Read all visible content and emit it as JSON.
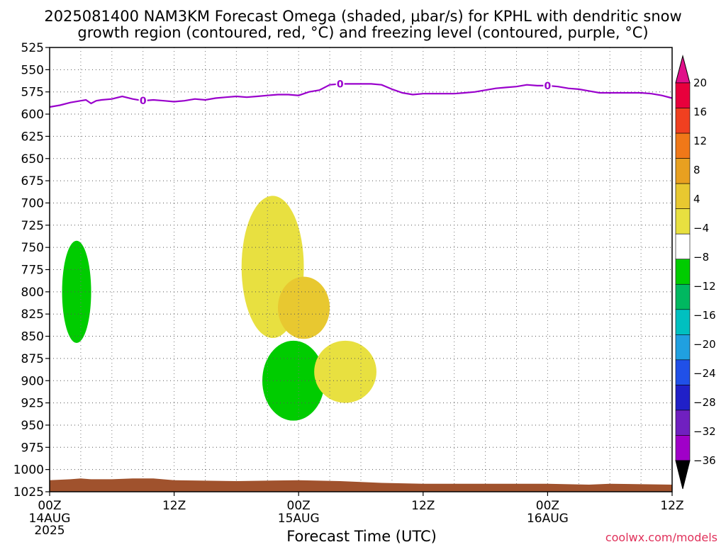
{
  "chart_data": {
    "type": "heatmap",
    "title_line1": "2025081400 NAM3KM Forecast Omega (shaded, μbar/s) for KPHL with dendritic snow",
    "title_line2": "growth region (contoured, red, °C) and freezing level (contoured, purple, °C)",
    "xlabel": "Forecast Time (UTC)",
    "credit": "coolwx.com/models",
    "x_range_hours": [
      0,
      60
    ],
    "y_range_hpa": [
      525,
      1025
    ],
    "y_scale": "pressure (inverted)",
    "grid": true,
    "x_ticks": [
      {
        "hour": 0,
        "label": "00Z",
        "date": "14AUG",
        "year": "2025"
      },
      {
        "hour": 12,
        "label": "12Z",
        "date": "",
        "year": ""
      },
      {
        "hour": 24,
        "label": "00Z",
        "date": "15AUG",
        "year": ""
      },
      {
        "hour": 36,
        "label": "12Z",
        "date": "",
        "year": ""
      },
      {
        "hour": 48,
        "label": "00Z",
        "date": "16AUG",
        "year": ""
      },
      {
        "hour": 60,
        "label": "12Z",
        "date": "",
        "year": ""
      }
    ],
    "y_ticks": [
      525,
      550,
      575,
      600,
      625,
      650,
      675,
      700,
      725,
      750,
      775,
      800,
      825,
      850,
      875,
      900,
      925,
      950,
      975,
      1000,
      1025
    ],
    "colorbar": {
      "labels": [
        "20",
        "16",
        "12",
        "8",
        "4",
        "−4",
        "−8",
        "−12",
        "−16",
        "−20",
        "−24",
        "−28",
        "−32",
        "−36"
      ],
      "colors": [
        "#e8003c",
        "#f04020",
        "#f07818",
        "#e8a020",
        "#e8c830",
        "#e8e040",
        "#ffffff",
        "#00cc00",
        "#00b860",
        "#00c0c0",
        "#20a0e0",
        "#2050e8",
        "#2020c8",
        "#7020c0",
        "#a000c8",
        "#a0a0a0"
      ]
    },
    "freezing_level": {
      "label": "0",
      "color": "#9900cc",
      "points": [
        [
          0,
          592
        ],
        [
          1,
          590
        ],
        [
          2,
          587
        ],
        [
          3,
          585
        ],
        [
          3.5,
          584
        ],
        [
          4,
          588
        ],
        [
          4.5,
          585
        ],
        [
          5,
          584
        ],
        [
          6,
          583
        ],
        [
          7,
          580
        ],
        [
          8,
          583
        ],
        [
          9,
          585
        ],
        [
          10,
          584
        ],
        [
          11,
          585
        ],
        [
          12,
          586
        ],
        [
          13,
          585
        ],
        [
          14,
          583
        ],
        [
          15,
          584
        ],
        [
          16,
          582
        ],
        [
          17,
          581
        ],
        [
          18,
          580
        ],
        [
          19,
          581
        ],
        [
          20,
          580
        ],
        [
          21,
          579
        ],
        [
          22,
          578
        ],
        [
          23,
          578
        ],
        [
          24,
          579
        ],
        [
          25,
          575
        ],
        [
          26,
          573
        ],
        [
          27,
          567
        ],
        [
          28,
          566
        ],
        [
          29,
          566
        ],
        [
          30,
          566
        ],
        [
          31,
          566
        ],
        [
          32,
          567
        ],
        [
          33,
          572
        ],
        [
          34,
          576
        ],
        [
          35,
          578
        ],
        [
          36,
          577
        ],
        [
          37,
          577
        ],
        [
          38,
          577
        ],
        [
          39,
          577
        ],
        [
          40,
          576
        ],
        [
          41,
          575
        ],
        [
          42,
          573
        ],
        [
          43,
          571
        ],
        [
          44,
          570
        ],
        [
          45,
          569
        ],
        [
          46,
          567
        ],
        [
          47,
          568
        ],
        [
          48,
          568
        ],
        [
          49,
          569
        ],
        [
          50,
          571
        ],
        [
          51,
          572
        ],
        [
          52,
          574
        ],
        [
          53,
          576
        ],
        [
          54,
          576
        ],
        [
          55,
          576
        ],
        [
          56,
          576
        ],
        [
          57,
          576
        ],
        [
          58,
          577
        ],
        [
          59,
          579
        ],
        [
          60,
          582
        ]
      ],
      "label_hours": [
        9,
        28,
        48
      ]
    },
    "omega_blobs": [
      {
        "label": "4",
        "color": "#e8e040",
        "cx": 21.5,
        "cy": 772,
        "rx": 3.0,
        "ry": 160
      },
      {
        "label": "8",
        "color": "#e8c830",
        "cx": 24.5,
        "cy": 818,
        "rx": 2.5,
        "ry": 70
      },
      {
        "label": "−8",
        "color": "#00cc00",
        "cx": 23.5,
        "cy": 900,
        "rx": 3.0,
        "ry": 90
      },
      {
        "label": "4",
        "color": "#e8e040",
        "cx": 28.5,
        "cy": 890,
        "rx": 3.0,
        "ry": 70
      },
      {
        "label": "−4",
        "color": "#00cc00",
        "cx": 2.6,
        "cy": 800,
        "rx": 1.4,
        "ry": 115
      }
    ],
    "surface": {
      "label": "terrain",
      "color": "#a0522d"
    }
  }
}
